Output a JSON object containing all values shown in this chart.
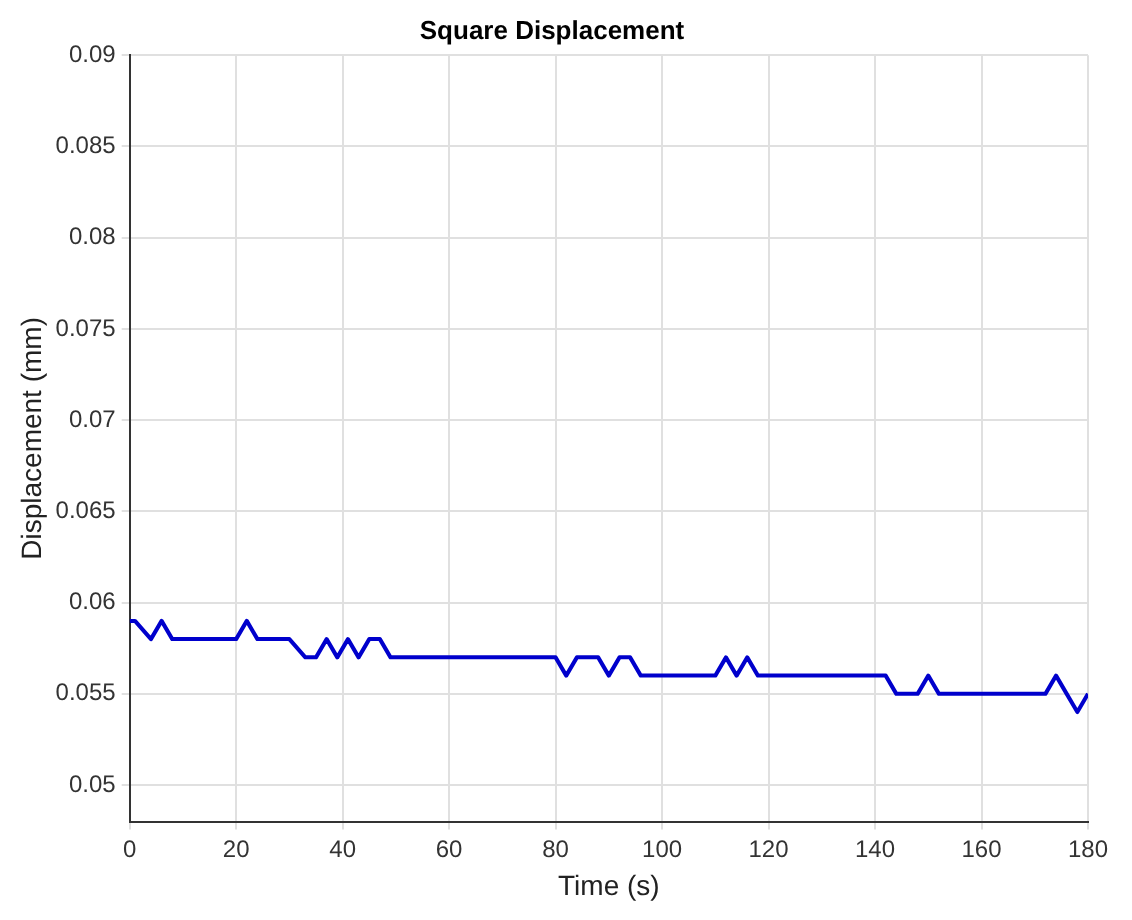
{
  "chart_data": {
    "type": "line",
    "title": "Square Displacement",
    "xlabel": "Time (s)",
    "ylabel": "Displacement (mm)",
    "xlim": [
      0,
      180
    ],
    "xticks": [
      0,
      20,
      40,
      60,
      80,
      100,
      120,
      140,
      160,
      180
    ],
    "ylim": [
      0.048,
      0.09
    ],
    "yticks": [
      0.05,
      0.055,
      0.06,
      0.065,
      0.07,
      0.075,
      0.08,
      0.085,
      0.09
    ],
    "grid": true,
    "legend": false,
    "series": [
      {
        "color": "#0000cc",
        "x": [
          0,
          1,
          4,
          6,
          8,
          20,
          22,
          24,
          30,
          33,
          35,
          37,
          39,
          41,
          43,
          45,
          47,
          49,
          80,
          82,
          84,
          88,
          90,
          92,
          94,
          96,
          110,
          112,
          114,
          116,
          118,
          142,
          144,
          148,
          150,
          152,
          172,
          174,
          176,
          178,
          180
        ],
        "values": [
          0.059,
          0.059,
          0.058,
          0.059,
          0.058,
          0.058,
          0.059,
          0.058,
          0.058,
          0.057,
          0.057,
          0.058,
          0.057,
          0.058,
          0.057,
          0.058,
          0.058,
          0.057,
          0.057,
          0.056,
          0.057,
          0.057,
          0.056,
          0.057,
          0.057,
          0.056,
          0.056,
          0.057,
          0.056,
          0.057,
          0.056,
          0.056,
          0.055,
          0.055,
          0.056,
          0.055,
          0.055,
          0.056,
          0.055,
          0.054,
          0.055
        ]
      }
    ]
  }
}
